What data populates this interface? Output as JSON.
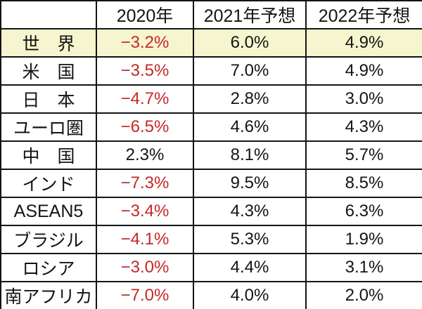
{
  "chart_data": {
    "type": "table",
    "title": "",
    "columns": [
      "",
      "2020年",
      "2021年予想",
      "2022年予想"
    ],
    "rows": [
      {
        "label": "世界",
        "values": [
          -3.2,
          6.0,
          4.9
        ]
      },
      {
        "label": "米国",
        "values": [
          -3.5,
          7.0,
          4.9
        ]
      },
      {
        "label": "日本",
        "values": [
          -4.7,
          2.8,
          3.0
        ]
      },
      {
        "label": "ユーロ圏",
        "values": [
          -6.5,
          4.6,
          4.3
        ]
      },
      {
        "label": "中国",
        "values": [
          2.3,
          8.1,
          5.7
        ]
      },
      {
        "label": "インド",
        "values": [
          -7.3,
          9.5,
          8.5
        ]
      },
      {
        "label": "ASEAN5",
        "values": [
          -3.4,
          4.3,
          6.3
        ]
      },
      {
        "label": "ブラジル",
        "values": [
          -4.1,
          5.3,
          1.9
        ]
      },
      {
        "label": "ロシア",
        "values": [
          -3.0,
          4.4,
          3.1
        ]
      },
      {
        "label": "南アフリカ",
        "values": [
          -7.0,
          4.0,
          2.0
        ]
      }
    ],
    "unit": "%",
    "notes": "negative values shown in red; World row highlighted"
  },
  "table": {
    "headers": [
      "",
      "2020年",
      "2021年予想",
      "2022年予想"
    ],
    "rows": [
      {
        "label": "世　界",
        "values": [
          "−3.2%",
          "6.0%",
          "4.9%"
        ],
        "highlight": true
      },
      {
        "label": "米　国",
        "values": [
          "−3.5%",
          "7.0%",
          "4.9%"
        ],
        "highlight": false
      },
      {
        "label": "日　本",
        "values": [
          "−4.7%",
          "2.8%",
          "3.0%"
        ],
        "highlight": false
      },
      {
        "label": "ユーロ圏",
        "values": [
          "−6.5%",
          "4.6%",
          "4.3%"
        ],
        "highlight": false
      },
      {
        "label": "中　国",
        "values": [
          "2.3%",
          "8.1%",
          "5.7%"
        ],
        "highlight": false
      },
      {
        "label": "インド",
        "values": [
          "−7.3%",
          "9.5%",
          "8.5%"
        ],
        "highlight": false
      },
      {
        "label": "ASEAN5",
        "values": [
          "−3.4%",
          "4.3%",
          "6.3%"
        ],
        "highlight": false
      },
      {
        "label": "ブラジル",
        "values": [
          "−4.1%",
          "5.3%",
          "1.9%"
        ],
        "highlight": false
      },
      {
        "label": "ロシア",
        "values": [
          "−3.0%",
          "4.4%",
          "3.1%"
        ],
        "highlight": false
      },
      {
        "label": "南アフリカ",
        "values": [
          "−7.0%",
          "4.0%",
          "2.0%"
        ],
        "highlight": false
      }
    ],
    "colors": {
      "negative_text": "#c62828",
      "normal_text": "#141414",
      "highlight_row_bg": "#f5f5cf",
      "border": "#141414",
      "cell_bg": "#ffffff"
    }
  }
}
